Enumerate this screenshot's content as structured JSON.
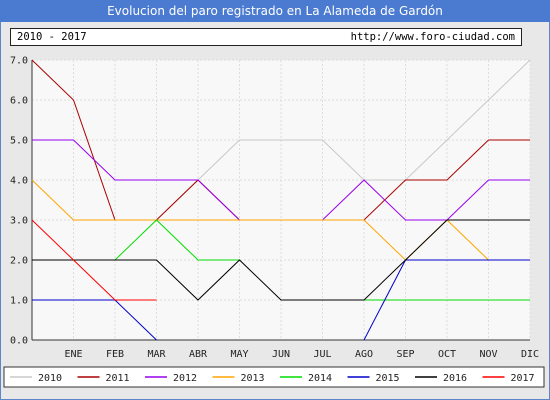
{
  "header": {
    "title": "Evolucion del paro registrado en La Alameda de Gardón",
    "period": "2010 - 2017",
    "url": "http://www.foro-ciudad.com"
  },
  "chart_data": {
    "type": "line",
    "title": "Evolucion del paro registrado en La Alameda de Gardón",
    "categories": [
      "",
      "ENE",
      "FEB",
      "MAR",
      "ABR",
      "MAY",
      "JUN",
      "JUL",
      "AGO",
      "SEP",
      "OCT",
      "NOV",
      "DIC"
    ],
    "y_ticks": [
      "0.0",
      "1.0",
      "2.0",
      "3.0",
      "4.0",
      "5.0",
      "6.0",
      "7.0"
    ],
    "ylim": [
      0,
      7
    ],
    "grid": true,
    "legend_position": "bottom",
    "series": [
      {
        "name": "2010",
        "color": "#c8c8c8",
        "values": [
          null,
          null,
          null,
          3,
          4,
          5,
          5,
          5,
          4,
          4,
          5,
          6,
          7
        ]
      },
      {
        "name": "2011",
        "color": "#aa0000",
        "values": [
          7,
          6,
          3,
          3,
          4,
          3,
          3,
          3,
          3,
          4,
          4,
          5,
          5
        ]
      },
      {
        "name": "2012",
        "color": "#9900ee",
        "values": [
          5,
          5,
          4,
          4,
          4,
          3,
          3,
          3,
          4,
          3,
          3,
          4,
          4
        ]
      },
      {
        "name": "2013",
        "color": "#ffa500",
        "values": [
          4,
          3,
          3,
          3,
          3,
          3,
          3,
          3,
          3,
          2,
          3,
          2,
          null
        ]
      },
      {
        "name": "2014",
        "color": "#00dd00",
        "values": [
          null,
          null,
          2,
          3,
          2,
          2,
          null,
          null,
          1,
          1,
          1,
          1,
          1
        ]
      },
      {
        "name": "2015",
        "color": "#0000cc",
        "values": [
          1,
          1,
          1,
          0,
          null,
          null,
          null,
          null,
          0,
          2,
          2,
          2,
          2
        ]
      },
      {
        "name": "2016",
        "color": "#000000",
        "values": [
          2,
          2,
          2,
          2,
          1,
          2,
          1,
          1,
          1,
          2,
          3,
          3,
          3
        ]
      },
      {
        "name": "2017",
        "color": "#ff0000",
        "values": [
          3,
          2,
          1,
          1,
          null,
          null,
          null,
          null,
          null,
          null,
          null,
          null,
          null
        ]
      }
    ]
  }
}
